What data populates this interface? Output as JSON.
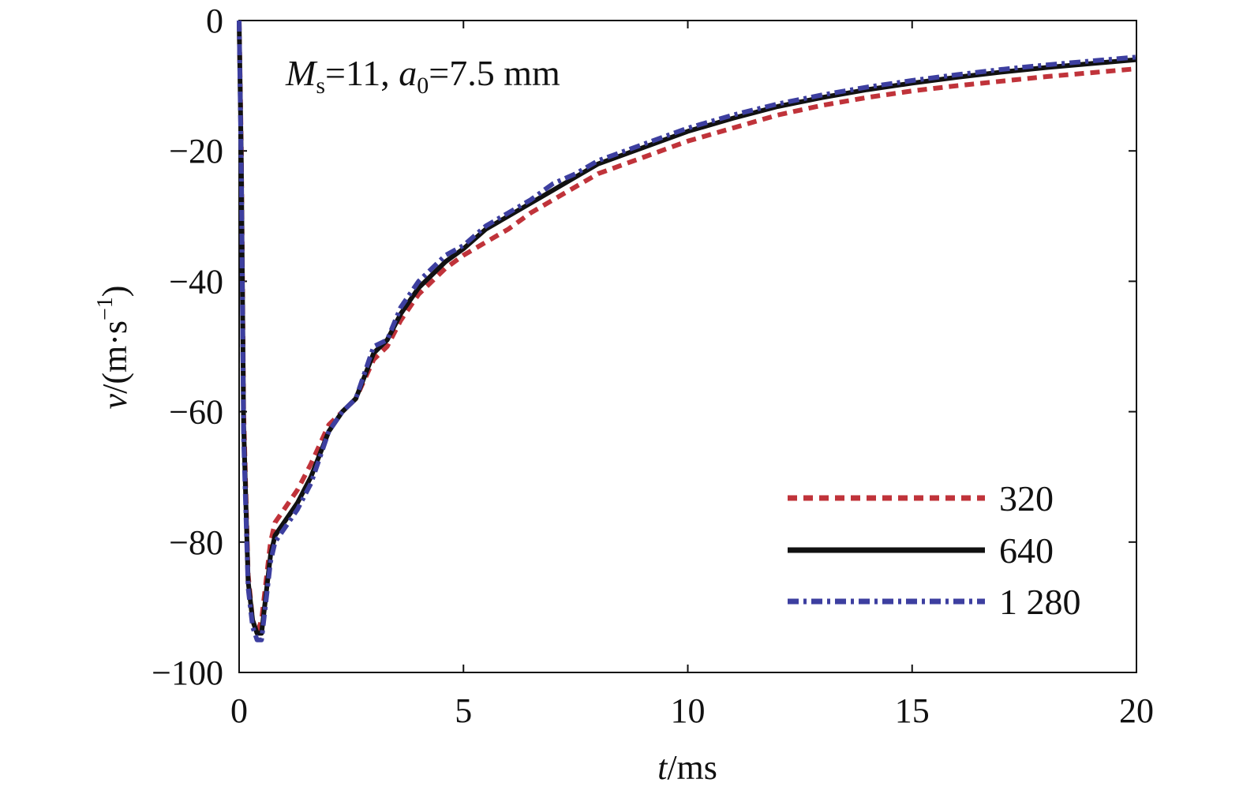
{
  "chart_data": {
    "type": "line",
    "annotation": {
      "m_symbol": "M",
      "m_sub": "s",
      "m_value": "=11, ",
      "a_symbol": "a",
      "a_sub": "0",
      "a_value": "=7.5 mm"
    },
    "xlabel": {
      "var": "t",
      "unit": "/ms"
    },
    "ylabel": {
      "var": "v",
      "unit_prefix": "/(m·s",
      "unit_exp": "−1",
      "unit_suffix": ")"
    },
    "xlim": [
      0,
      20
    ],
    "ylim": [
      -100,
      0
    ],
    "xticks": [
      0,
      5,
      10,
      15,
      20
    ],
    "xtick_labels": [
      "0",
      "5",
      "10",
      "15",
      "20"
    ],
    "yticks": [
      0,
      -20,
      -40,
      -60,
      -80,
      -100
    ],
    "ytick_labels": [
      "0",
      "−20",
      "−40",
      "−60",
      "−80",
      "−100"
    ],
    "grid": false,
    "legend_position": "bottom-right",
    "series": [
      {
        "name": "320",
        "color": "#c0333a",
        "style": "dashed",
        "x": [
          0,
          0.05,
          0.1,
          0.2,
          0.3,
          0.4,
          0.5,
          0.6,
          0.7,
          0.8,
          1.0,
          1.3,
          1.6,
          2.0,
          2.3,
          2.6,
          3.0,
          3.3,
          3.6,
          4.0,
          4.3,
          4.6,
          5.0,
          5.5,
          6.0,
          6.5,
          7.0,
          7.5,
          8.0,
          9.0,
          10.0,
          11.0,
          12.0,
          13.0,
          14.0,
          15.0,
          16.0,
          17.0,
          18.0,
          19.0,
          20.0
        ],
        "y": [
          0,
          -20,
          -60,
          -85,
          -92,
          -94,
          -92,
          -86,
          -80,
          -77,
          -75,
          -72,
          -68,
          -62,
          -60,
          -58,
          -52,
          -50,
          -46,
          -42,
          -40,
          -38,
          -36,
          -34,
          -32,
          -29.5,
          -27.5,
          -25.5,
          -23.5,
          -21,
          -18.5,
          -16.5,
          -14.5,
          -13,
          -11.8,
          -10.8,
          -10,
          -9.3,
          -8.6,
          -8.0,
          -7.4
        ]
      },
      {
        "name": "640",
        "color": "#111111",
        "style": "solid",
        "x": [
          0,
          0.05,
          0.1,
          0.2,
          0.3,
          0.4,
          0.5,
          0.6,
          0.7,
          0.8,
          1.0,
          1.3,
          1.6,
          2.0,
          2.3,
          2.6,
          3.0,
          3.3,
          3.6,
          4.0,
          4.3,
          4.6,
          5.0,
          5.5,
          6.0,
          6.5,
          7.0,
          7.5,
          8.0,
          9.0,
          10.0,
          11.0,
          12.0,
          13.0,
          14.0,
          15.0,
          16.0,
          17.0,
          18.0,
          19.0,
          20.0
        ],
        "y": [
          0,
          -22,
          -62,
          -86,
          -92,
          -94,
          -94,
          -88,
          -82,
          -79,
          -77,
          -74,
          -70,
          -63,
          -60,
          -58,
          -51,
          -49,
          -45,
          -41,
          -39,
          -37,
          -35,
          -32,
          -30,
          -28,
          -26,
          -24,
          -22,
          -19.5,
          -17.0,
          -15.0,
          -13.2,
          -11.8,
          -10.6,
          -9.6,
          -8.7,
          -7.9,
          -7.2,
          -6.6,
          -6.0
        ]
      },
      {
        "name": "1 280",
        "color": "#3d3fa0",
        "style": "dashdot",
        "x": [
          0,
          0.05,
          0.1,
          0.2,
          0.3,
          0.4,
          0.5,
          0.6,
          0.7,
          0.8,
          1.0,
          1.3,
          1.6,
          2.0,
          2.3,
          2.6,
          3.0,
          3.3,
          3.6,
          4.0,
          4.3,
          4.6,
          5.0,
          5.5,
          6.0,
          6.5,
          7.0,
          7.5,
          8.0,
          9.0,
          10.0,
          11.0,
          12.0,
          13.0,
          14.0,
          15.0,
          16.0,
          17.0,
          18.0,
          19.0,
          20.0
        ],
        "y": [
          0,
          -24,
          -64,
          -87,
          -93,
          -95,
          -95,
          -89,
          -83,
          -80,
          -78,
          -75,
          -71,
          -63,
          -60,
          -58,
          -50,
          -49,
          -44,
          -40,
          -38,
          -36,
          -34.5,
          -31.5,
          -29.5,
          -27.5,
          -25,
          -23.5,
          -21.5,
          -19,
          -16.5,
          -14.5,
          -12.8,
          -11.4,
          -10.2,
          -9.2,
          -8.3,
          -7.5,
          -6.8,
          -6.2,
          -5.6
        ]
      }
    ]
  }
}
